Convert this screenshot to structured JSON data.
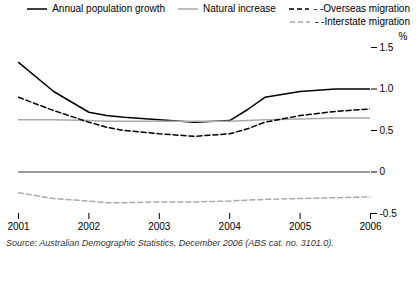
{
  "chart_data": {
    "type": "line",
    "x": [
      2001,
      2001.5,
      2002,
      2002.25,
      2002.5,
      2003,
      2003.5,
      2004,
      2004.25,
      2004.5,
      2005,
      2005.5,
      2006
    ],
    "series": [
      {
        "name": "Annual population growth",
        "color": "#000000",
        "line_style": "solid",
        "values": [
          1.32,
          0.97,
          0.72,
          0.68,
          0.66,
          0.63,
          0.6,
          0.62,
          0.75,
          0.9,
          0.97,
          1.0,
          1.0
        ]
      },
      {
        "name": "Natural increase",
        "color": "#aaaaaa",
        "line_style": "solid",
        "values": [
          0.63,
          0.63,
          0.62,
          0.61,
          0.61,
          0.61,
          0.61,
          0.61,
          0.62,
          0.63,
          0.64,
          0.65,
          0.65
        ]
      },
      {
        "name": "- -Overseas migration",
        "color": "#000000",
        "line_style": "dashed",
        "values": [
          0.9,
          0.74,
          0.6,
          0.54,
          0.5,
          0.46,
          0.43,
          0.46,
          0.52,
          0.6,
          0.68,
          0.73,
          0.76
        ]
      },
      {
        "name": "- -Interstate migration",
        "color": "#aaaaaa",
        "line_style": "dashed",
        "values": [
          -0.25,
          -0.32,
          -0.35,
          -0.37,
          -0.37,
          -0.36,
          -0.36,
          -0.35,
          -0.34,
          -0.33,
          -0.32,
          -0.31,
          -0.3
        ]
      }
    ],
    "xlim": [
      2001,
      2006
    ],
    "xticks": [
      2001,
      2002,
      2003,
      2004,
      2005,
      2006
    ],
    "ylim": [
      -0.5,
      1.5
    ],
    "yticks": [
      -0.5,
      0,
      0.5,
      {
        "value": 1,
        "label": "1.0"
      },
      1.5
    ],
    "ylabel": "%",
    "hline": 0,
    "legend": "upper right",
    "caption": "Source: Australian Demographic Statistics, December 2006 (ABS cat. no. 3101.0).",
    "grid": false
  }
}
